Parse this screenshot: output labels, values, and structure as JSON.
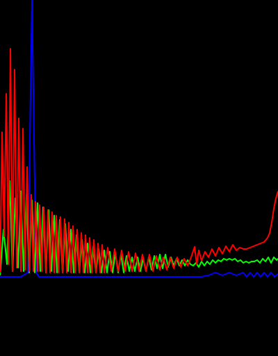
{
  "chart_data": {
    "type": "line",
    "title": "",
    "xlabel": "",
    "ylabel": "",
    "grid": false,
    "legend": "none",
    "background": "#000000",
    "xlim": [
      0,
      400
    ],
    "ylim": [
      0,
      400
    ],
    "series": [
      {
        "color": "#0000ff",
        "x": [
          0,
          10,
          20,
          30,
          40,
          43,
          46,
          49,
          52,
          56,
          60,
          70,
          80,
          90,
          100,
          110,
          120,
          130,
          140,
          150,
          160,
          170,
          180,
          190,
          200,
          210,
          220,
          230,
          240,
          250,
          260,
          270,
          280,
          290,
          300,
          310,
          320,
          330,
          340,
          350,
          355,
          360,
          365,
          370,
          375,
          380,
          385,
          390,
          395,
          400
        ],
        "y": [
          2,
          2,
          2,
          2,
          8,
          200,
          400,
          200,
          8,
          2,
          2,
          2,
          2,
          2,
          2,
          2,
          2,
          2,
          2,
          2,
          2,
          2,
          2,
          2,
          2,
          2,
          2,
          2,
          2,
          2,
          2,
          2,
          2,
          2,
          4,
          8,
          4,
          8,
          4,
          8,
          2,
          8,
          2,
          8,
          2,
          8,
          2,
          8,
          2,
          6
        ]
      },
      {
        "color": "#00ff00",
        "x": [
          0,
          5,
          10,
          14,
          18,
          22,
          26,
          30,
          34,
          38,
          42,
          46,
          50,
          54,
          58,
          62,
          66,
          70,
          74,
          78,
          82,
          86,
          90,
          94,
          98,
          102,
          106,
          110,
          114,
          118,
          122,
          126,
          130,
          134,
          138,
          142,
          146,
          150,
          154,
          158,
          162,
          166,
          170,
          174,
          178,
          182,
          186,
          190,
          194,
          198,
          202,
          206,
          210,
          214,
          218,
          222,
          226,
          230,
          234,
          238,
          242,
          246,
          250,
          254,
          258,
          262,
          266,
          270,
          274,
          278,
          282,
          286,
          290,
          294,
          298,
          302,
          306,
          310,
          314,
          318,
          322,
          326,
          330,
          334,
          338,
          342,
          346,
          350,
          354,
          358,
          362,
          366,
          370,
          374,
          378,
          382,
          386,
          390,
          394,
          398,
          400
        ],
        "y": [
          4,
          70,
          20,
          140,
          10,
          115,
          15,
          125,
          10,
          120,
          8,
          112,
          8,
          108,
          10,
          102,
          8,
          98,
          10,
          90,
          8,
          84,
          8,
          78,
          10,
          70,
          8,
          62,
          8,
          55,
          8,
          50,
          8,
          45,
          8,
          42,
          8,
          40,
          8,
          38,
          8,
          36,
          8,
          34,
          8,
          32,
          10,
          30,
          10,
          30,
          10,
          28,
          10,
          30,
          12,
          32,
          14,
          34,
          14,
          34,
          16,
          30,
          18,
          28,
          18,
          26,
          18,
          26,
          20,
          18,
          22,
          16,
          24,
          18,
          24,
          20,
          26,
          22,
          26,
          24,
          28,
          26,
          28,
          26,
          28,
          24,
          26,
          22,
          24,
          22,
          24,
          24,
          26,
          22,
          28,
          24,
          30,
          22,
          30,
          26,
          28
        ]
      },
      {
        "color": "#ff0000",
        "x": [
          0,
          3,
          6,
          9,
          12,
          15,
          18,
          21,
          24,
          27,
          30,
          33,
          36,
          39,
          42,
          45,
          48,
          51,
          54,
          57,
          60,
          63,
          66,
          69,
          72,
          75,
          78,
          81,
          84,
          87,
          90,
          93,
          96,
          99,
          102,
          105,
          108,
          111,
          114,
          117,
          120,
          123,
          126,
          129,
          132,
          135,
          138,
          141,
          144,
          147,
          150,
          155,
          160,
          165,
          170,
          175,
          180,
          185,
          190,
          195,
          200,
          205,
          210,
          215,
          220,
          225,
          230,
          235,
          240,
          245,
          250,
          255,
          260,
          265,
          270,
          275,
          280,
          283,
          286,
          290,
          295,
          300,
          305,
          310,
          315,
          320,
          325,
          330,
          335,
          340,
          345,
          350,
          355,
          360,
          365,
          370,
          375,
          380,
          385,
          388,
          391,
          394,
          397,
          400
        ],
        "y": [
          8,
          210,
          60,
          265,
          20,
          330,
          10,
          300,
          15,
          230,
          10,
          215,
          12,
          160,
          10,
          120,
          10,
          110,
          10,
          105,
          10,
          102,
          8,
          98,
          8,
          95,
          8,
          90,
          8,
          88,
          8,
          85,
          8,
          80,
          8,
          75,
          8,
          70,
          8,
          65,
          8,
          62,
          8,
          58,
          8,
          55,
          8,
          50,
          8,
          48,
          8,
          44,
          10,
          42,
          10,
          40,
          10,
          38,
          10,
          36,
          10,
          34,
          10,
          34,
          10,
          32,
          12,
          30,
          12,
          30,
          14,
          30,
          16,
          28,
          18,
          30,
          45,
          20,
          40,
          25,
          38,
          30,
          42,
          32,
          44,
          35,
          46,
          38,
          48,
          40,
          44,
          42,
          42,
          44,
          46,
          48,
          50,
          52,
          58,
          65,
          80,
          100,
          115,
          125
        ]
      }
    ]
  }
}
